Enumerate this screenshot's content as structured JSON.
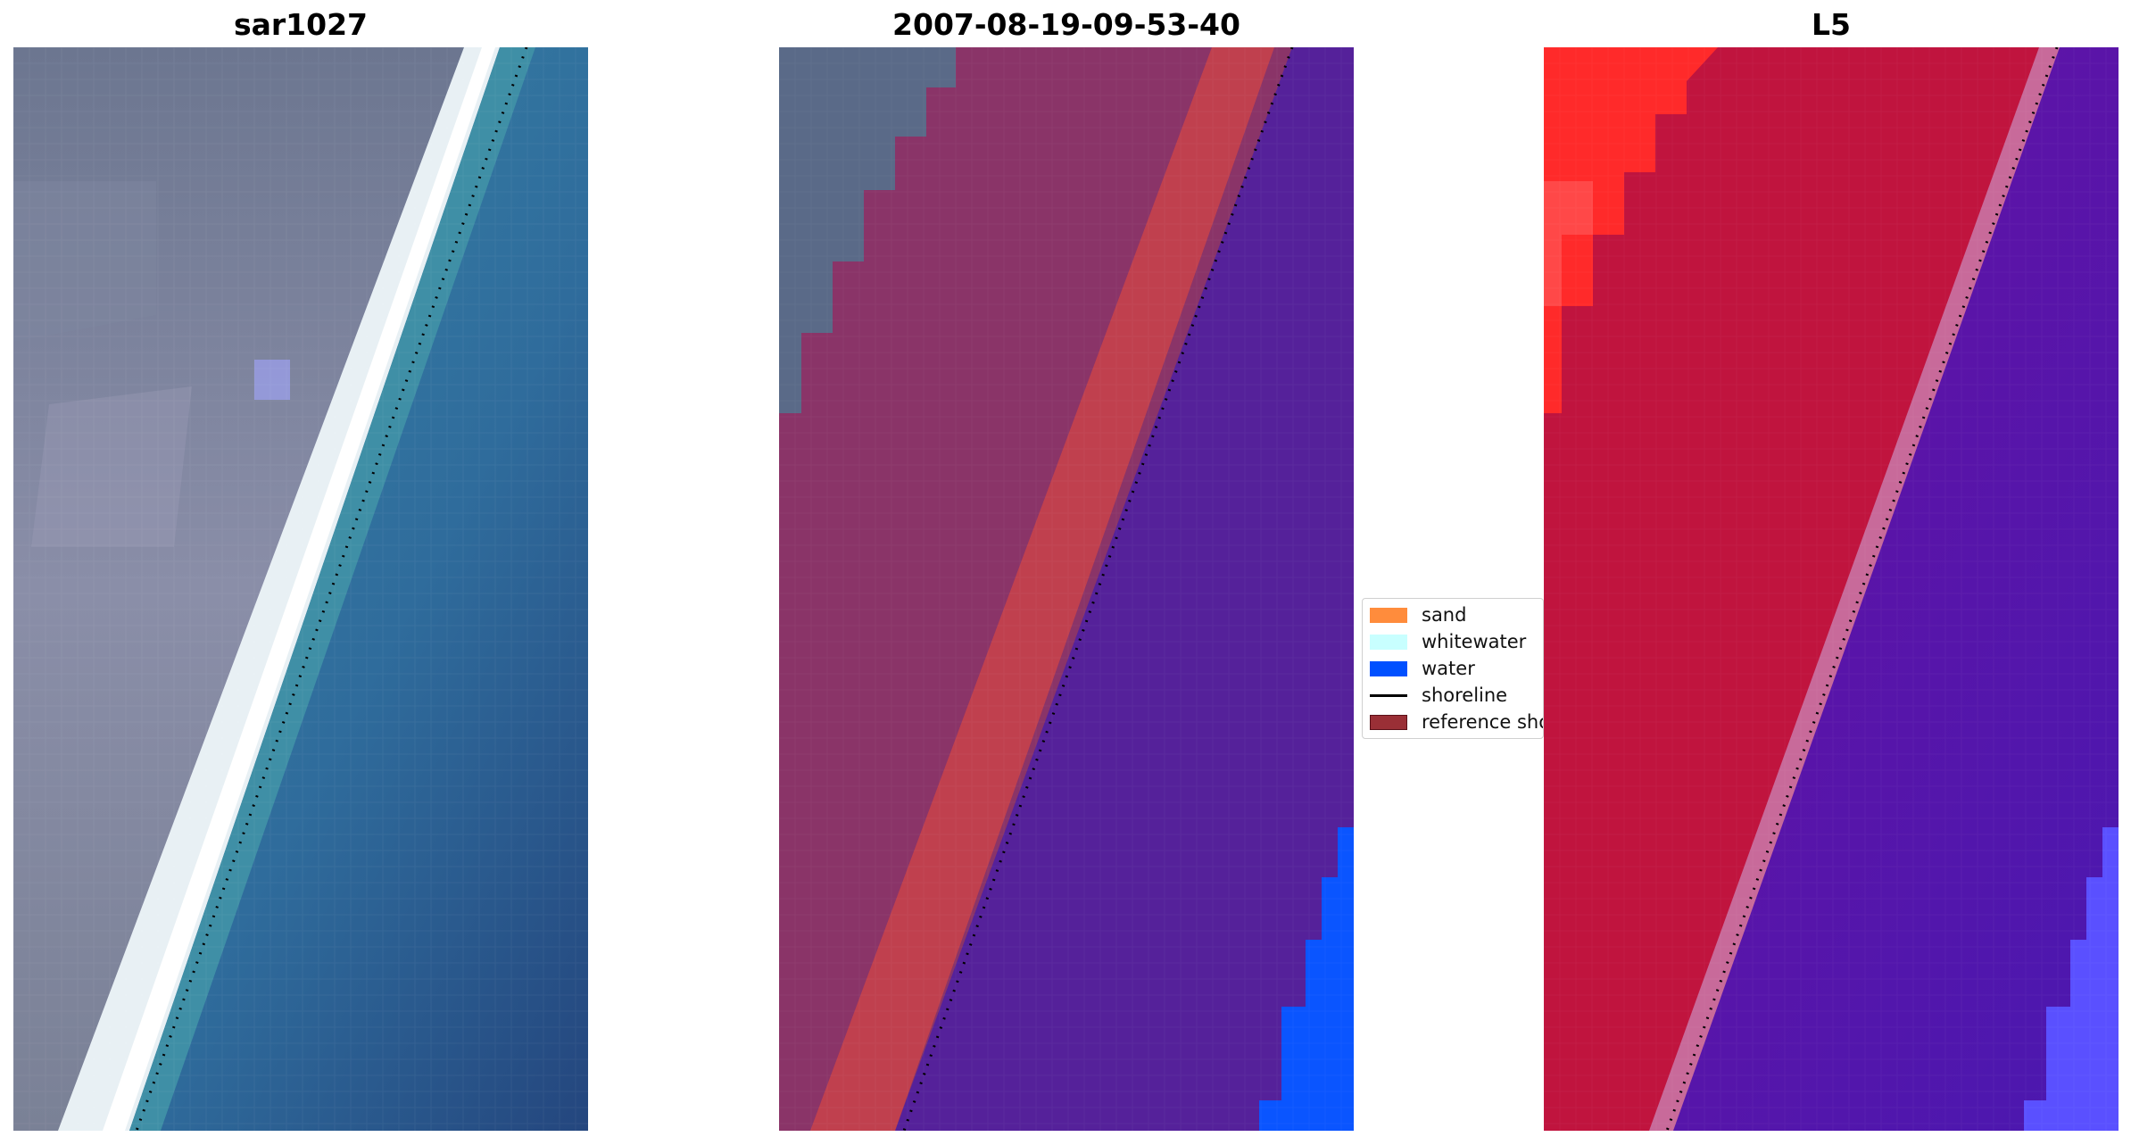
{
  "panels": [
    {
      "title": "sar1027"
    },
    {
      "title": "2007-08-19-09-53-40"
    },
    {
      "title": "L5"
    }
  ],
  "legend": {
    "items": [
      {
        "label": "sand",
        "color": "#ff8c3c"
      },
      {
        "label": "whitewater",
        "color": "#c8ffff"
      },
      {
        "label": "water",
        "color": "#0050ff"
      },
      {
        "label": "shoreline",
        "color": "#000000"
      },
      {
        "label": "reference sho",
        "color": "#9a2f36"
      }
    ]
  },
  "colors": {
    "land_rgb": "#7d849e",
    "sea_rgb": "#2f6f9d",
    "land_class": "#8a3468",
    "sand_class": "#c0404e",
    "water_class": "#55219a",
    "water_edge": "#0a55ff",
    "land_index": "#c0143e",
    "water_index": "#5a14a8",
    "index_high": "#ff2020",
    "index_low": "#5050ff"
  }
}
